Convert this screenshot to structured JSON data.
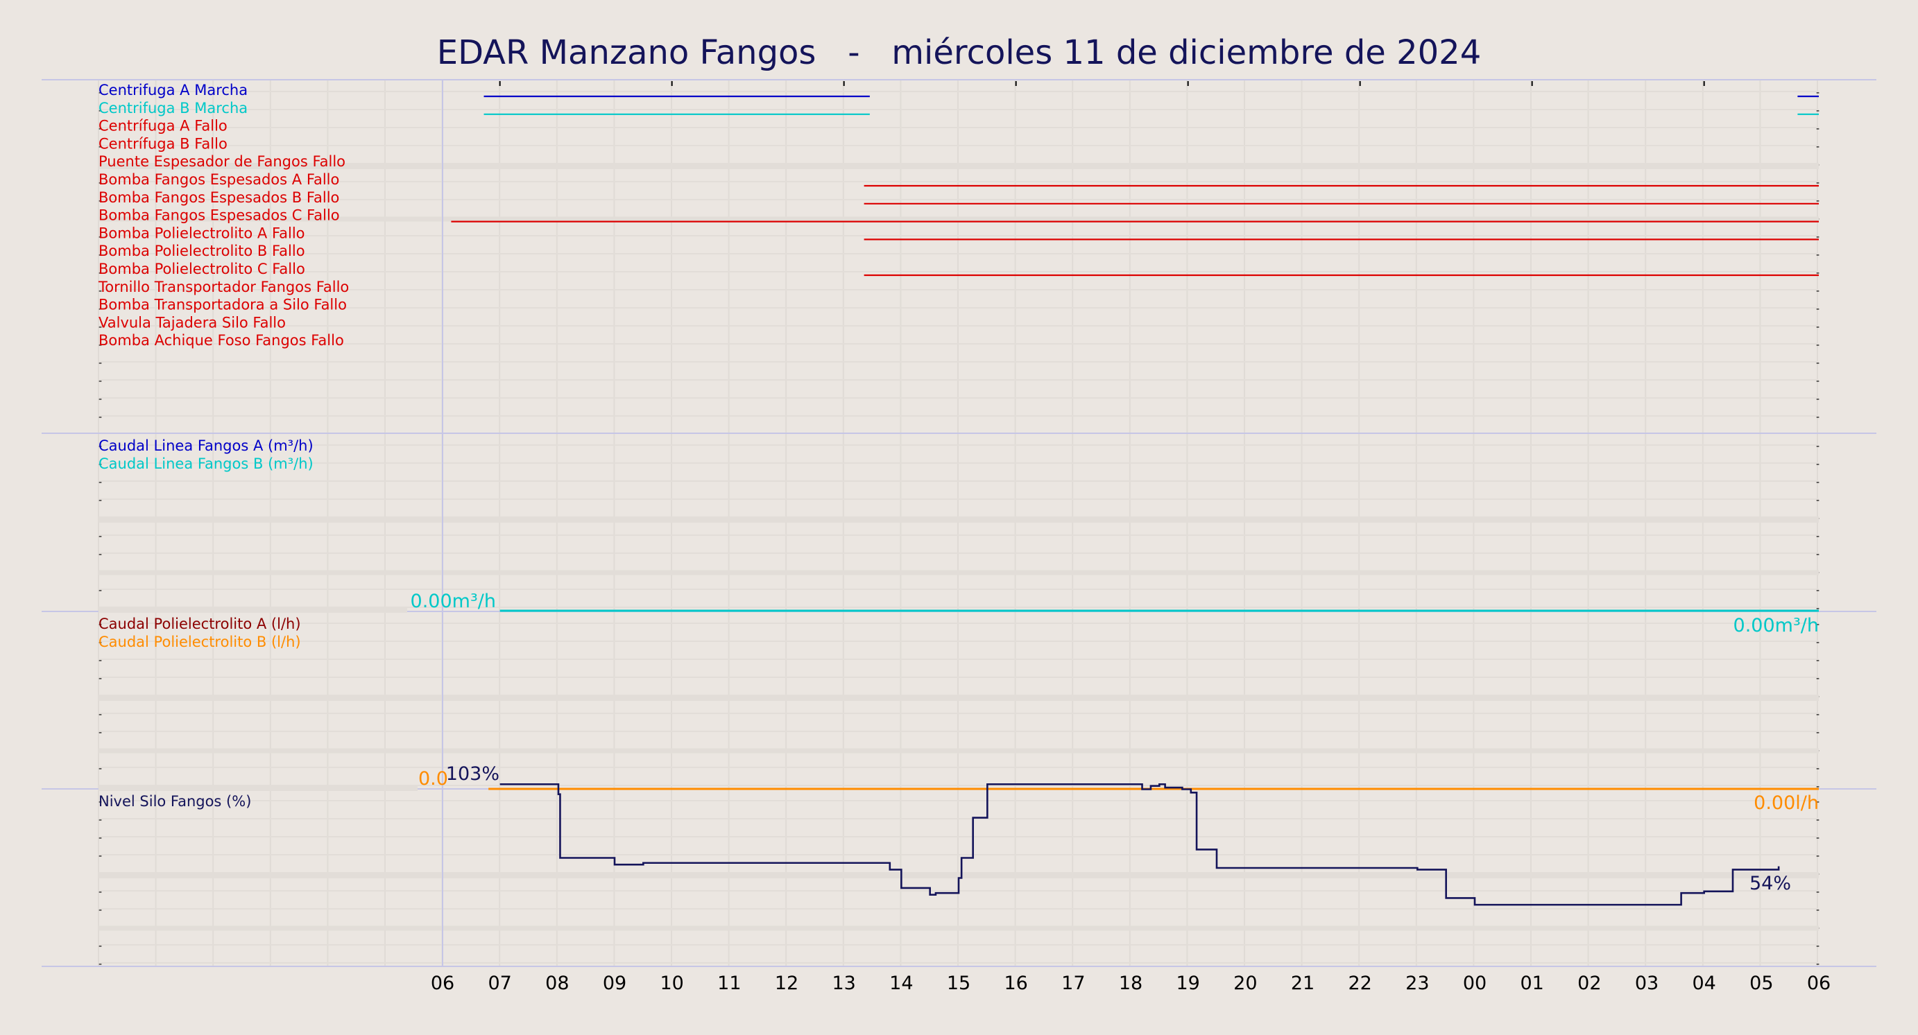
{
  "title": "EDAR Manzano Fangos   -   miércoles 11 de diciembre de 2024",
  "chart_data": [
    {
      "type": "line",
      "panel": "digital",
      "x_unit": "hour",
      "series": [
        {
          "name": "Centrifuga A Marcha",
          "color": "#0000c8",
          "segments": [
            [
              6.72,
              13.45
            ],
            [
              5.63,
              6.0
            ]
          ]
        },
        {
          "name": "Centrifuga B Marcha",
          "color": "#00c8c8",
          "segments": [
            [
              6.72,
              13.45
            ],
            [
              5.63,
              6.0
            ]
          ]
        },
        {
          "name": "Centrífuga A Fallo",
          "color": "#dc0000",
          "segments": []
        },
        {
          "name": "Centrífuga B Fallo",
          "color": "#dc0000",
          "segments": []
        },
        {
          "name": "Puente Espesador de Fangos Fallo",
          "color": "#dc0000",
          "segments": []
        },
        {
          "name": "Bomba Fangos Espesados A Fallo",
          "color": "#dc0000",
          "segments": [
            [
              13.35,
              6.0
            ]
          ]
        },
        {
          "name": "Bomba Fangos Espesados B Fallo",
          "color": "#dc0000",
          "segments": [
            [
              13.35,
              6.0
            ]
          ]
        },
        {
          "name": "Bomba Fangos Espesados C Fallo",
          "color": "#dc0000",
          "segments": [
            [
              6.15,
              6.0
            ]
          ]
        },
        {
          "name": "Bomba Polielectrolito A Fallo",
          "color": "#dc0000",
          "segments": [
            [
              13.35,
              6.0
            ]
          ]
        },
        {
          "name": "Bomba Polielectrolito B Fallo",
          "color": "#dc0000",
          "segments": []
        },
        {
          "name": "Bomba Polielectrolito C Fallo",
          "color": "#dc0000",
          "segments": [
            [
              13.35,
              6.0
            ]
          ]
        },
        {
          "name": "Tornillo Transportador Fangos Fallo",
          "color": "#dc0000",
          "segments": []
        },
        {
          "name": "Bomba Transportadora a Silo Fallo",
          "color": "#dc0000",
          "segments": []
        },
        {
          "name": "Valvula Tajadera Silo Fallo",
          "color": "#dc0000",
          "segments": []
        },
        {
          "name": "Bomba Achique Foso Fangos Fallo",
          "color": "#dc0000",
          "segments": []
        }
      ]
    },
    {
      "type": "line",
      "panel": "caudal-fangos",
      "x_unit": "hour",
      "series": [
        {
          "name": "Caudal Linea Fangos A (m³/h)",
          "color": "#0000c8",
          "x": [],
          "y": []
        },
        {
          "name": "Caudal Linea Fangos B (m³/h)",
          "color": "#00c8c8",
          "x": [
            7.0,
            30.0
          ],
          "y": [
            0,
            0
          ]
        }
      ],
      "annotations": [
        {
          "text": "0.00m³/h",
          "at": "start"
        },
        {
          "text": "0.00m³/h",
          "at": "end"
        }
      ]
    },
    {
      "type": "line",
      "panel": "caudal-polielectrolito",
      "x_unit": "hour",
      "series": [
        {
          "name": "Caudal Polielectrolito A (l/h)",
          "color": "#8c0000",
          "x": [],
          "y": []
        },
        {
          "name": "Caudal Polielectrolito B (l/h)",
          "color": "#ff8c00",
          "x": [
            6.8,
            30.0
          ],
          "y": [
            0,
            0
          ]
        }
      ],
      "annotations": [
        {
          "text": "0.0",
          "at": "start"
        },
        {
          "text": "0.00l/h",
          "at": "end"
        }
      ]
    },
    {
      "type": "line",
      "panel": "nivel-silo",
      "x_unit": "hour",
      "ylim": [
        0,
        106
      ],
      "series": [
        {
          "name": "Nivel Silo Fangos (%)",
          "color": "#14145a",
          "x": [
            7.0,
            8.0,
            8.02,
            8.05,
            8.5,
            9.0,
            9.5,
            9.9,
            10.5,
            13.65,
            13.8,
            14.0,
            14.5,
            14.6,
            15.0,
            15.05,
            15.25,
            15.5,
            18.1,
            18.2,
            18.35,
            18.5,
            18.6,
            18.9,
            19.05,
            19.15,
            19.5,
            21.5,
            23.0,
            23.5,
            24.0,
            25.0,
            27.5,
            27.6,
            28.0,
            28.5,
            29.0,
            29.3
          ],
          "y": [
            103,
            103,
            97,
            59,
            59,
            55,
            56,
            56,
            56,
            56,
            52,
            41,
            37,
            38,
            47,
            59,
            83,
            103,
            103,
            100,
            102,
            103,
            101,
            100,
            98,
            64,
            53,
            53,
            52,
            35,
            31,
            31,
            31,
            38,
            39,
            52,
            52,
            54
          ]
        },
        {
          "name": "",
          "color": "#14145a",
          "x": [],
          "y": []
        }
      ],
      "annotations": [
        {
          "text": "103%",
          "at": "start"
        },
        {
          "text": "54%",
          "at": "end"
        }
      ]
    }
  ],
  "x_ticks": [
    "06",
    "07",
    "08",
    "09",
    "10",
    "11",
    "12",
    "13",
    "14",
    "15",
    "16",
    "17",
    "18",
    "19",
    "20",
    "21",
    "22",
    "23",
    "00",
    "01",
    "02",
    "03",
    "04",
    "05",
    "06"
  ],
  "panel_labels": {
    "caudal_fangos": [
      "Caudal Linea Fangos A (m³/h)",
      "Caudal Linea Fangos B (m³/h)"
    ],
    "caudal_poli": [
      "Caudal Polielectrolito A (l/h)",
      "Caudal Polielectrolito B (l/h)"
    ],
    "nivel": [
      "Nivel Silo Fangos (%)"
    ]
  },
  "colors": {
    "background": "#ebe6e1",
    "title": "#14145a",
    "alarm": "#dc0000",
    "run_a": "#0000c8",
    "run_b": "#00c8c8",
    "poli_b": "#ff8c00",
    "nivel": "#14145a"
  }
}
